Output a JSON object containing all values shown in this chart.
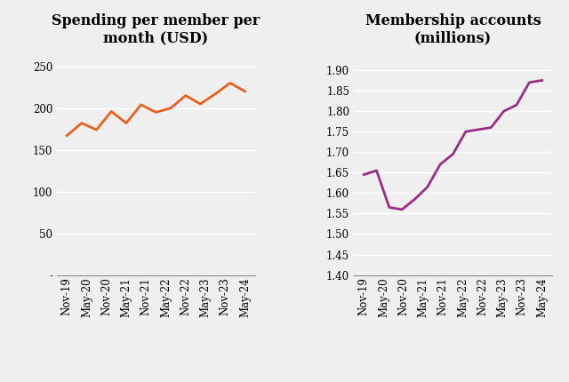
{
  "x_ticks_labels": [
    "Nov-19",
    "May-20",
    "Nov-20",
    "May-21",
    "Nov-21",
    "May-22",
    "Nov-22",
    "May-23",
    "Nov-23",
    "May-24"
  ],
  "spending_values": [
    167,
    182,
    174,
    196,
    182,
    204,
    195,
    200,
    215,
    205,
    217,
    230,
    220
  ],
  "membership_values": [
    1.645,
    1.655,
    1.565,
    1.56,
    1.585,
    1.615,
    1.67,
    1.695,
    1.75,
    1.755,
    1.76,
    1.8,
    1.815,
    1.87,
    1.875
  ],
  "title1": "Spending per member per\nmonth (USD)",
  "title2": "Membership accounts\n(millions)",
  "spending_color": "#E8601C",
  "membership_color": "#9B2C8A",
  "spending_ylim": [
    0,
    270
  ],
  "spending_yticks": [
    0,
    50,
    100,
    150,
    200,
    250
  ],
  "spending_ytick_labels": [
    "-",
    "50",
    "100",
    "150",
    "200",
    "250"
  ],
  "membership_ylim": [
    1.4,
    1.95
  ],
  "membership_yticks": [
    1.4,
    1.45,
    1.5,
    1.55,
    1.6,
    1.65,
    1.7,
    1.75,
    1.8,
    1.85,
    1.9
  ],
  "background_color": "#EFEFEF",
  "grid_color": "#FFFFFF",
  "title_fontsize": 11.5,
  "tick_fontsize": 8.5
}
